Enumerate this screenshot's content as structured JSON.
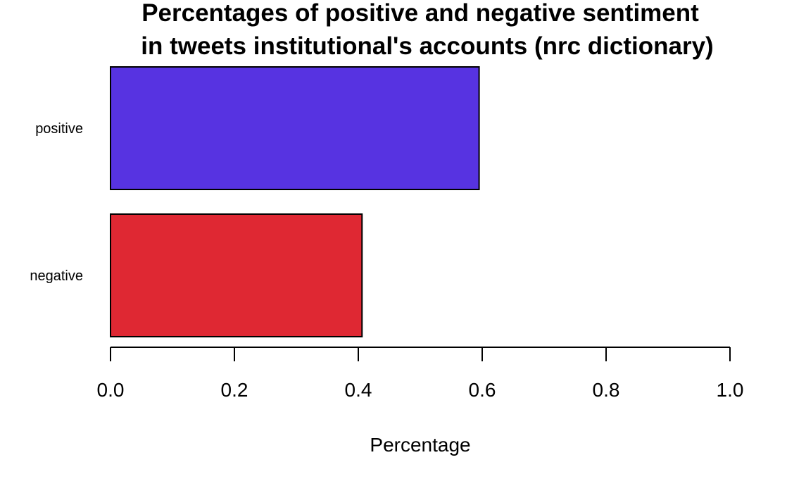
{
  "chart_data": {
    "type": "bar",
    "orientation": "horizontal",
    "title_lines": [
      "Percentages of positive and negative sentiment",
      "in tweets institutional's accounts (nrc dictionary)"
    ],
    "xlabel": "Percentage",
    "ylabel": "",
    "xlim": [
      0,
      1
    ],
    "xticks": [
      "0.0",
      "0.2",
      "0.4",
      "0.6",
      "0.8",
      "1.0"
    ],
    "categories": [
      "positive",
      "negative"
    ],
    "values": [
      0.595,
      0.406
    ],
    "colors": [
      "#5733e1",
      "#df2833"
    ],
    "grid": false,
    "legend": "none"
  }
}
